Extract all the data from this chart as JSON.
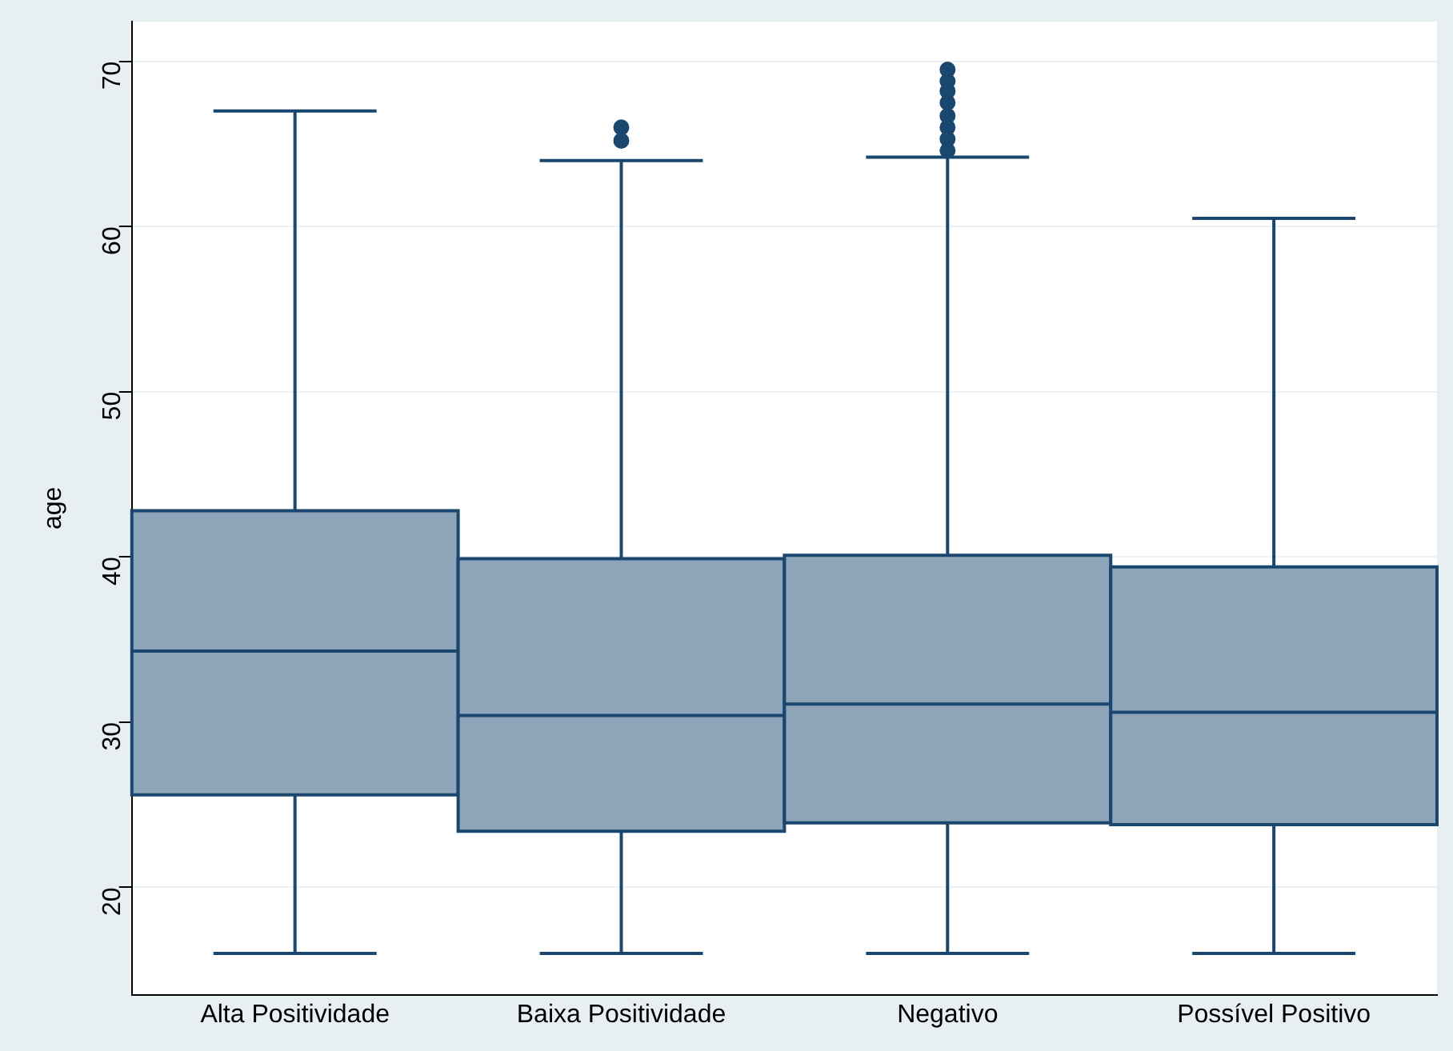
{
  "chart_data": {
    "type": "box",
    "ylabel": "age",
    "categories": [
      "Alta Positividade",
      "Baixa Positividade",
      "Negativo",
      "Possível Positivo"
    ],
    "boxes": [
      {
        "low": 16,
        "q1": 25.6,
        "median": 34.3,
        "q3": 42.8,
        "high": 67
      },
      {
        "low": 16,
        "q1": 23.4,
        "median": 30.4,
        "q3": 39.9,
        "high": 64,
        "outliers": [
          65.2,
          66
        ]
      },
      {
        "low": 16,
        "q1": 23.9,
        "median": 31.1,
        "q3": 40.1,
        "high": 64.2,
        "outliers": [
          64.6,
          65.3,
          66,
          66.7,
          67.5,
          68.2,
          68.8,
          69.5
        ]
      },
      {
        "low": 16,
        "q1": 23.8,
        "median": 30.6,
        "q3": 39.4,
        "high": 60.5
      }
    ],
    "color": "#8ea4b8",
    "ylim": [
      13.5,
      72.4
    ],
    "yticks": [
      20,
      30,
      40,
      50,
      60,
      70
    ],
    "grid": "y"
  }
}
